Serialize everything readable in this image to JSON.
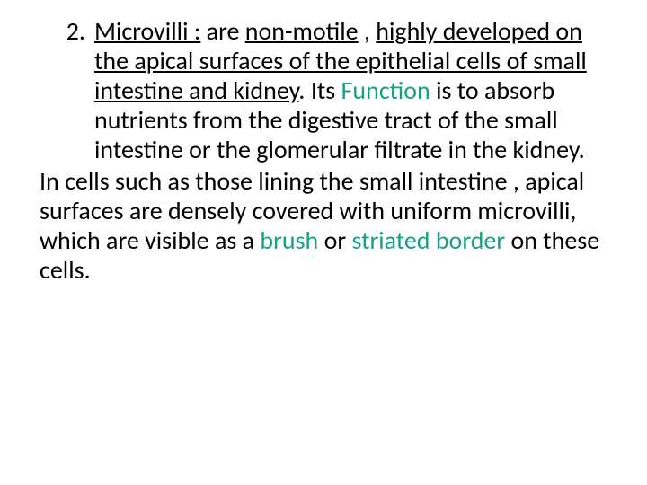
{
  "colors": {
    "text": "#000000",
    "accent": "#17a086",
    "background": "#ffffff"
  },
  "typography": {
    "font_family": "Calibri",
    "font_size_pt": 28,
    "line_height": 1.18
  },
  "list": {
    "number": "2.",
    "item": {
      "term_underlined": "Microvilli :",
      "seg1": " are ",
      "nonmotile_underlined": "non-motile",
      "seg2": " , ",
      "developed_underlined": "highly developed on the apical surfaces of the epithelial cells of small intestine and kidney",
      "period": ". Its ",
      "function_word": "Function",
      "seg3": " is to absorb nutrients from the digestive tract of the small intestine or the glomerular filtrate in the kidney."
    }
  },
  "para2": {
    "lead": " In cells such as those lining the small intestine , apical surfaces are densely covered with uniform microvilli, which are visible as a ",
    "brush_word": "brush",
    "or": " or ",
    "striated_word": "striated border",
    "tail": " on these cells."
  }
}
